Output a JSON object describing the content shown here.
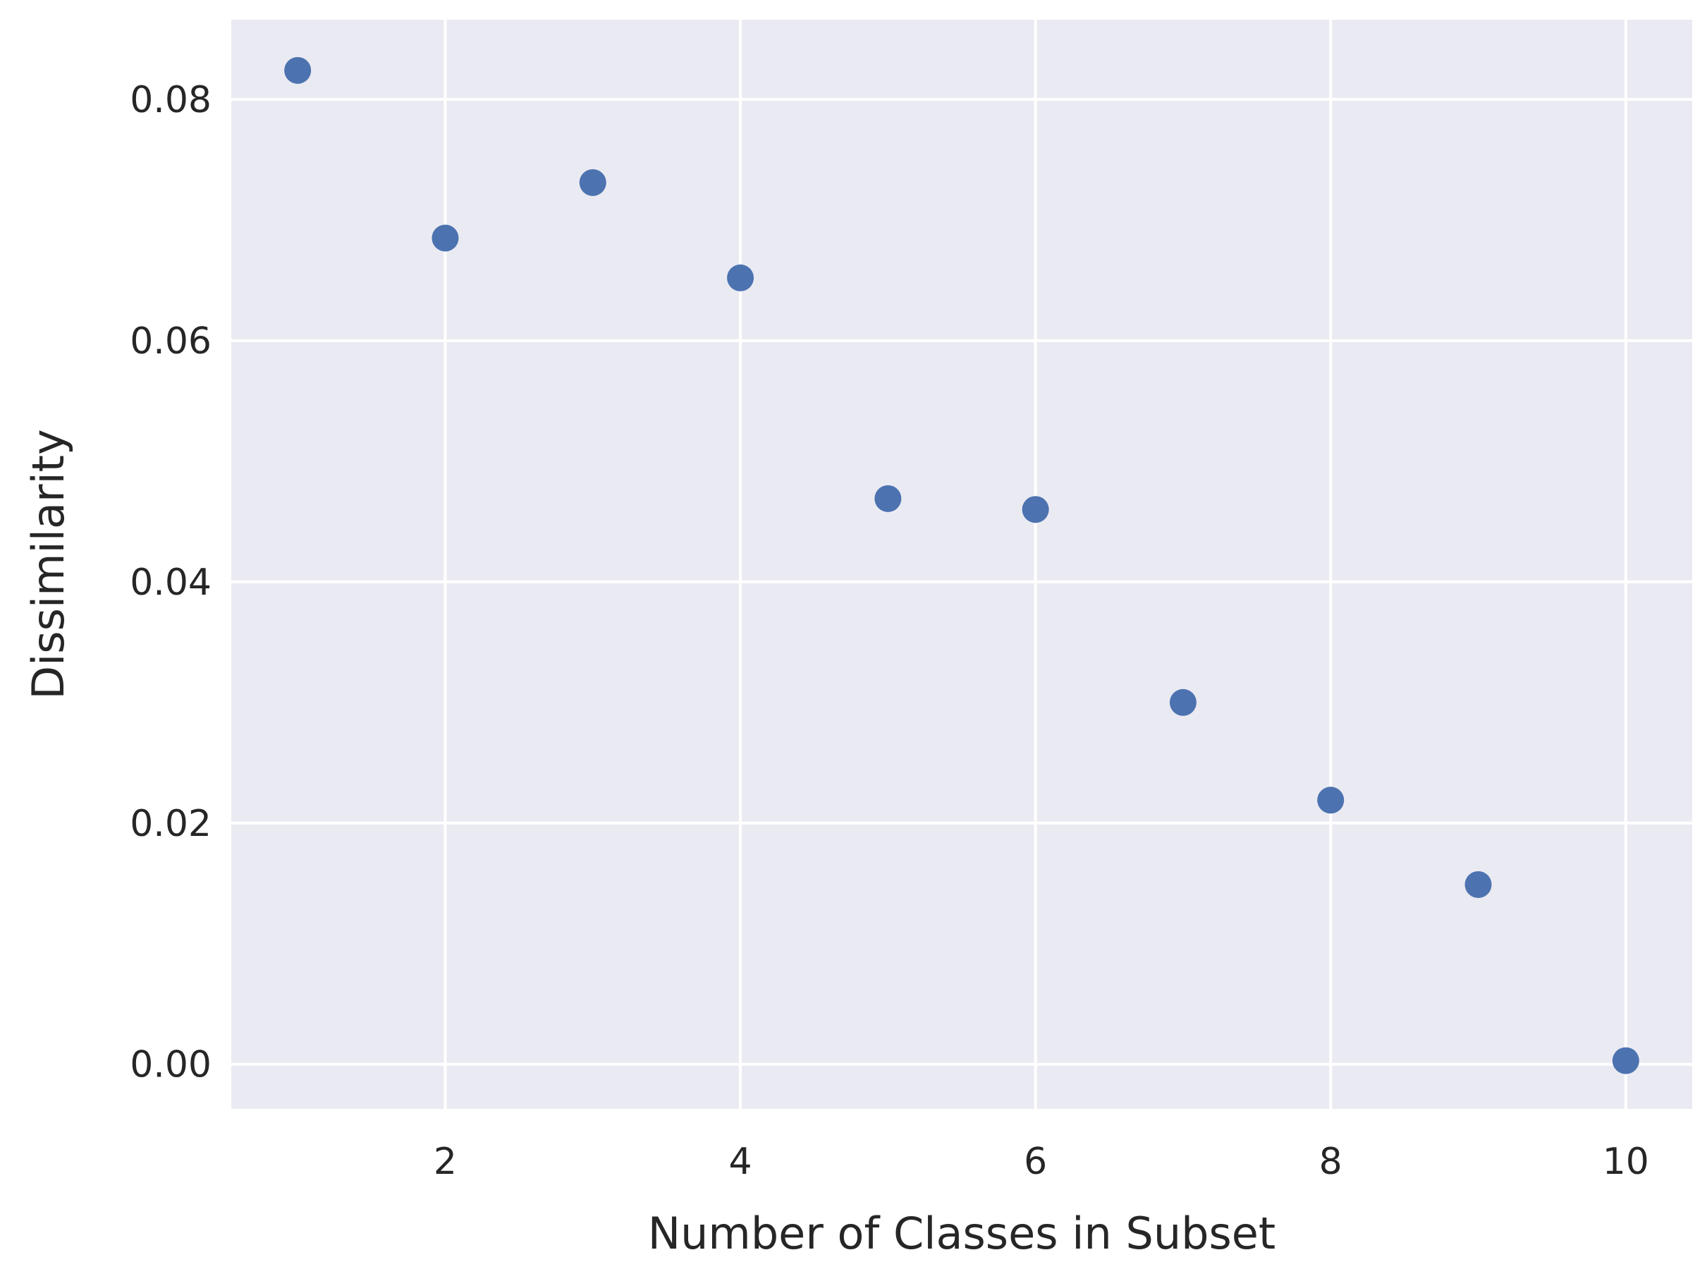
{
  "chart_data": {
    "type": "scatter",
    "title": "",
    "xlabel": "Number of Classes in Subset",
    "ylabel": "Dissimilarity",
    "x": [
      1,
      2,
      3,
      4,
      5,
      6,
      7,
      8,
      9,
      10
    ],
    "y": [
      0.0824,
      0.0685,
      0.0731,
      0.0652,
      0.0469,
      0.046,
      0.03,
      0.0219,
      0.0149,
      0.0003
    ],
    "xlim": [
      0.55,
      10.45
    ],
    "ylim": [
      -0.0037,
      0.0866
    ],
    "xticks": [
      2,
      4,
      6,
      8,
      10
    ],
    "xtick_labels": [
      "2",
      "4",
      "6",
      "8",
      "10"
    ],
    "yticks": [
      0.0,
      0.02,
      0.04,
      0.06,
      0.08
    ],
    "ytick_labels": [
      "0.00",
      "0.02",
      "0.04",
      "0.06",
      "0.08"
    ],
    "grid": true,
    "colors": {
      "background": "#eaeaf2",
      "grid": "#ffffff",
      "marker": "#4c72b0",
      "text": "#262626"
    }
  }
}
